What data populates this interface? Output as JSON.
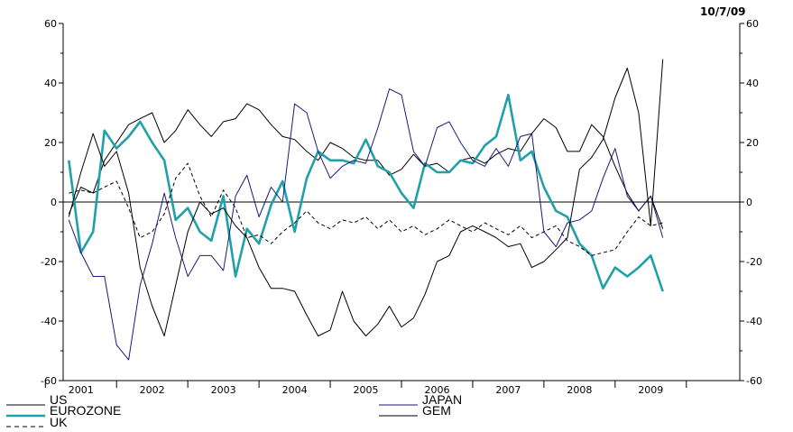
{
  "date_label": "10/7/09",
  "chart_data": {
    "type": "line",
    "title": "",
    "xlabel": "",
    "ylabel": "",
    "x_range": [
      2000.75,
      2010.25
    ],
    "ylim": [
      -60,
      60
    ],
    "yticks": [
      60,
      40,
      20,
      0,
      -20,
      -40,
      -60
    ],
    "y_tick_labels": [
      "60",
      "40",
      "20",
      "0",
      "-20",
      "-40",
      "-60"
    ],
    "x_tick_labels": [
      "2001",
      "2002",
      "2003",
      "2004",
      "2005",
      "2006",
      "2007",
      "2008",
      "2009"
    ],
    "x_tick_positions": [
      2001,
      2002,
      2003,
      2004,
      2005,
      2006,
      2007,
      2008,
      2009
    ],
    "zero_line": true,
    "grid": false,
    "legend": {
      "position": "bottom",
      "entries": [
        {
          "name": "US",
          "color": "#000000",
          "style": "solid"
        },
        {
          "name": "EUROZONE",
          "color": "#20a0a8",
          "style": "thick"
        },
        {
          "name": "UK",
          "color": "#000000",
          "style": "dashed"
        },
        {
          "name": "JAPAN",
          "color": "#1a1a7a",
          "style": "solid"
        },
        {
          "name": "GEM",
          "color": "#000000",
          "style": "solid"
        }
      ]
    },
    "series": [
      {
        "name": "US",
        "color": "#000000",
        "x": [
          2000.83,
          2001.0,
          2001.17,
          2001.33,
          2001.5,
          2001.67,
          2001.83,
          2002.0,
          2002.17,
          2002.33,
          2002.5,
          2002.67,
          2002.83,
          2003.0,
          2003.17,
          2003.33,
          2003.5,
          2003.67,
          2003.83,
          2004.0,
          2004.17,
          2004.33,
          2004.5,
          2004.67,
          2004.83,
          2005.0,
          2005.17,
          2005.33,
          2005.5,
          2005.67,
          2005.83,
          2006.0,
          2006.17,
          2006.33,
          2006.5,
          2006.67,
          2006.83,
          2007.0,
          2007.17,
          2007.33,
          2007.5,
          2007.67,
          2007.83,
          2008.0,
          2008.17,
          2008.33,
          2008.5,
          2008.67,
          2008.83,
          2009.0,
          2009.17
        ],
        "values": [
          -4,
          5,
          3,
          14,
          20,
          26,
          28,
          30,
          20,
          24,
          31,
          26,
          22,
          27,
          28,
          33,
          31,
          26,
          22,
          21,
          17,
          14,
          20,
          18,
          15,
          14,
          14,
          9,
          11,
          16,
          12,
          13,
          10,
          14,
          15,
          13,
          16,
          18,
          17,
          23,
          28,
          25,
          17,
          17,
          26,
          22,
          12,
          3,
          -3,
          2,
          -9
        ]
      },
      {
        "name": "EUROZONE",
        "color": "#20a0a8",
        "x": [
          2000.83,
          2001.0,
          2001.17,
          2001.33,
          2001.5,
          2001.67,
          2001.83,
          2002.0,
          2002.17,
          2002.33,
          2002.5,
          2002.67,
          2002.83,
          2003.0,
          2003.17,
          2003.33,
          2003.5,
          2003.67,
          2003.83,
          2004.0,
          2004.17,
          2004.33,
          2004.5,
          2004.67,
          2004.83,
          2005.0,
          2005.17,
          2005.33,
          2005.5,
          2005.67,
          2005.83,
          2006.0,
          2006.17,
          2006.33,
          2006.5,
          2006.67,
          2006.83,
          2007.0,
          2007.17,
          2007.33,
          2007.5,
          2007.67,
          2007.83,
          2008.0,
          2008.17,
          2008.33,
          2008.5,
          2008.67,
          2008.83,
          2009.0,
          2009.17
        ],
        "values": [
          14,
          -17,
          -10,
          24,
          18,
          22,
          27,
          20,
          14,
          -6,
          -2,
          -10,
          -13,
          2,
          -25,
          -9,
          -14,
          -1,
          7,
          -10,
          8,
          17,
          14,
          14,
          13,
          21,
          12,
          10,
          3,
          -2,
          13,
          10,
          10,
          14,
          13,
          19,
          22,
          36,
          14,
          17,
          5,
          -3,
          -5,
          -14,
          -18,
          -29,
          -22,
          -25,
          -22,
          -18,
          -30
        ]
      },
      {
        "name": "UK",
        "color": "#000000",
        "style": "dashed",
        "x": [
          2000.83,
          2001.0,
          2001.17,
          2001.33,
          2001.5,
          2001.67,
          2001.83,
          2002.0,
          2002.17,
          2002.33,
          2002.5,
          2002.67,
          2002.83,
          2003.0,
          2003.17,
          2003.33,
          2003.5,
          2003.67,
          2003.83,
          2004.0,
          2004.17,
          2004.33,
          2004.5,
          2004.67,
          2004.83,
          2005.0,
          2005.17,
          2005.33,
          2005.5,
          2005.67,
          2005.83,
          2006.0,
          2006.17,
          2006.33,
          2006.5,
          2006.67,
          2006.83,
          2007.0,
          2007.17,
          2007.33,
          2007.5,
          2007.67,
          2007.83,
          2008.0,
          2008.17,
          2008.33,
          2008.5,
          2008.67,
          2008.83,
          2009.0,
          2009.17
        ],
        "values": [
          3,
          4,
          3,
          5,
          7,
          -2,
          -12,
          -10,
          -4,
          8,
          13,
          2,
          -5,
          4,
          -2,
          -12,
          -11,
          -14,
          -10,
          -7,
          -3,
          -7,
          -9,
          -6,
          -7,
          -5,
          -9,
          -6,
          -10,
          -8,
          -11,
          -9,
          -6,
          -8,
          -10,
          -7,
          -9,
          -11,
          -8,
          -12,
          -10,
          -8,
          -13,
          -15,
          -18,
          -17,
          -16,
          -10,
          -5,
          -8,
          -7
        ]
      },
      {
        "name": "JAPAN",
        "color": "#1a1a7a",
        "x": [
          2000.83,
          2001.0,
          2001.17,
          2001.33,
          2001.5,
          2001.67,
          2001.83,
          2002.0,
          2002.17,
          2002.33,
          2002.5,
          2002.67,
          2002.83,
          2003.0,
          2003.17,
          2003.33,
          2003.5,
          2003.67,
          2003.83,
          2004.0,
          2004.17,
          2004.33,
          2004.5,
          2004.67,
          2004.83,
          2005.0,
          2005.17,
          2005.33,
          2005.5,
          2005.67,
          2005.83,
          2006.0,
          2006.17,
          2006.33,
          2006.5,
          2006.67,
          2006.83,
          2007.0,
          2007.17,
          2007.33,
          2007.5,
          2007.67,
          2007.83,
          2008.0,
          2008.17,
          2008.33,
          2008.5,
          2008.67,
          2008.83,
          2009.0,
          2009.17
        ],
        "values": [
          -6,
          -17,
          -25,
          -25,
          -48,
          -53,
          -28,
          -14,
          3,
          -12,
          -25,
          -18,
          -18,
          -23,
          2,
          9,
          -5,
          5,
          0,
          33,
          30,
          17,
          8,
          12,
          14,
          13,
          25,
          38,
          36,
          17,
          12,
          25,
          27,
          20,
          14,
          12,
          18,
          12,
          22,
          23,
          -10,
          -15,
          -7,
          -6,
          -3,
          8,
          18,
          2,
          -3,
          2,
          -12
        ]
      },
      {
        "name": "GEM",
        "color": "#000000",
        "x": [
          2000.83,
          2001.0,
          2001.17,
          2001.33,
          2001.5,
          2001.67,
          2001.83,
          2002.0,
          2002.17,
          2002.33,
          2002.5,
          2002.67,
          2002.83,
          2003.0,
          2003.17,
          2003.33,
          2003.5,
          2003.67,
          2003.83,
          2004.0,
          2004.17,
          2004.33,
          2004.5,
          2004.67,
          2004.83,
          2005.0,
          2005.17,
          2005.33,
          2005.5,
          2005.67,
          2005.83,
          2006.0,
          2006.17,
          2006.33,
          2006.5,
          2006.67,
          2006.83,
          2007.0,
          2007.17,
          2007.33,
          2007.5,
          2007.67,
          2007.83,
          2008.0,
          2008.17,
          2008.33,
          2008.5,
          2008.67,
          2008.83,
          2009.0,
          2009.17
        ],
        "values": [
          -5,
          10,
          23,
          12,
          17,
          3,
          -22,
          -35,
          -45,
          -28,
          -10,
          0,
          -4,
          -2,
          -8,
          -12,
          -22,
          -29,
          -29,
          -30,
          -38,
          -45,
          -43,
          -30,
          -40,
          -45,
          -41,
          -35,
          -42,
          -39,
          -31,
          -20,
          -18,
          -10,
          -8,
          -10,
          -12,
          -15,
          -14,
          -22,
          -20,
          -16,
          -12,
          11,
          15,
          21,
          35,
          45,
          30,
          -8,
          48
        ]
      }
    ]
  }
}
